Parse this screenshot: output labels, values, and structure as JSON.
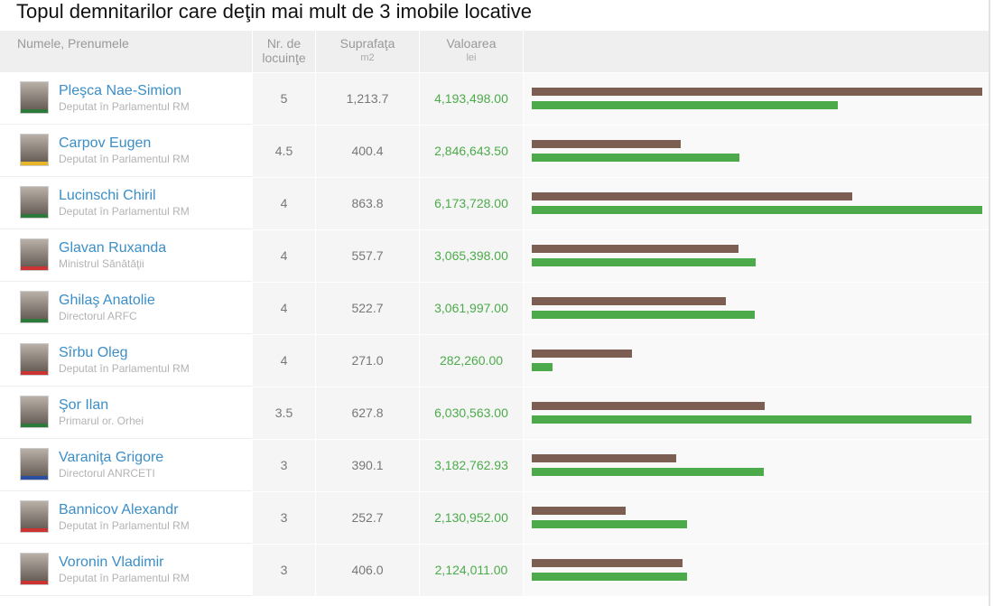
{
  "title": "Topul demnitarilor care deţin mai mult de 3 imobile locative",
  "table": {
    "header": {
      "name": "Numele, Prenumele",
      "count": "Nr. de locuinţe",
      "area": "Suprafaţa",
      "area_unit": "m2",
      "value": "Valoarea",
      "value_unit": "lei"
    },
    "bar_colors": {
      "area": "#7c5f52",
      "value": "#4daa4b"
    },
    "rows": [
      {
        "name": "Pleşca Nae-Simion",
        "role": "Deputat în Parlamentul RM",
        "count": 5,
        "area": 1213.7,
        "area_label": "1,213.7",
        "value": 4193498,
        "value_label": "4,193,498.00"
      },
      {
        "name": "Carpov Eugen",
        "role": "Deputat în Parlamentul RM",
        "count": 4.5,
        "area": 400.4,
        "area_label": "400.4",
        "value": 2846643.5,
        "value_label": "2,846,643.50"
      },
      {
        "name": "Lucinschi Chiril",
        "role": "Deputat în Parlamentul RM",
        "count": 4,
        "area": 863.8,
        "area_label": "863.8",
        "value": 6173728,
        "value_label": "6,173,728.00"
      },
      {
        "name": "Glavan Ruxanda",
        "role": "Ministrul Sănătăţii",
        "count": 4,
        "area": 557.7,
        "area_label": "557.7",
        "value": 3065398,
        "value_label": "3,065,398.00"
      },
      {
        "name": "Ghilaş Anatolie",
        "role": "Directorul ARFC",
        "count": 4,
        "area": 522.7,
        "area_label": "522.7",
        "value": 3061997,
        "value_label": "3,061,997.00"
      },
      {
        "name": "Sîrbu Oleg",
        "role": "Deputat în Parlamentul RM",
        "count": 4,
        "area": 271,
        "area_label": "271.0",
        "value": 282260,
        "value_label": "282,260.00"
      },
      {
        "name": "Şor Ilan",
        "role": "Primarul or. Orhei",
        "count": 3.5,
        "area": 627.8,
        "area_label": "627.8",
        "value": 6030563,
        "value_label": "6,030,563.00"
      },
      {
        "name": "Varaniţa Grigore",
        "role": "Directorul ANRCETI",
        "count": 3,
        "area": 390.1,
        "area_label": "390.1",
        "value": 3182762.93,
        "value_label": "3,182,762.93"
      },
      {
        "name": "Bannicov Alexandr",
        "role": "Deputat în Parlamentul RM",
        "count": 3,
        "area": 252.7,
        "area_label": "252.7",
        "value": 2130952,
        "value_label": "2,130,952.00"
      },
      {
        "name": "Voronin Vladimir",
        "role": "Deputat în Parlamentul RM",
        "count": 3,
        "area": 406,
        "area_label": "406.0",
        "value": 2124011,
        "value_label": "2,124,011.00"
      }
    ]
  }
}
